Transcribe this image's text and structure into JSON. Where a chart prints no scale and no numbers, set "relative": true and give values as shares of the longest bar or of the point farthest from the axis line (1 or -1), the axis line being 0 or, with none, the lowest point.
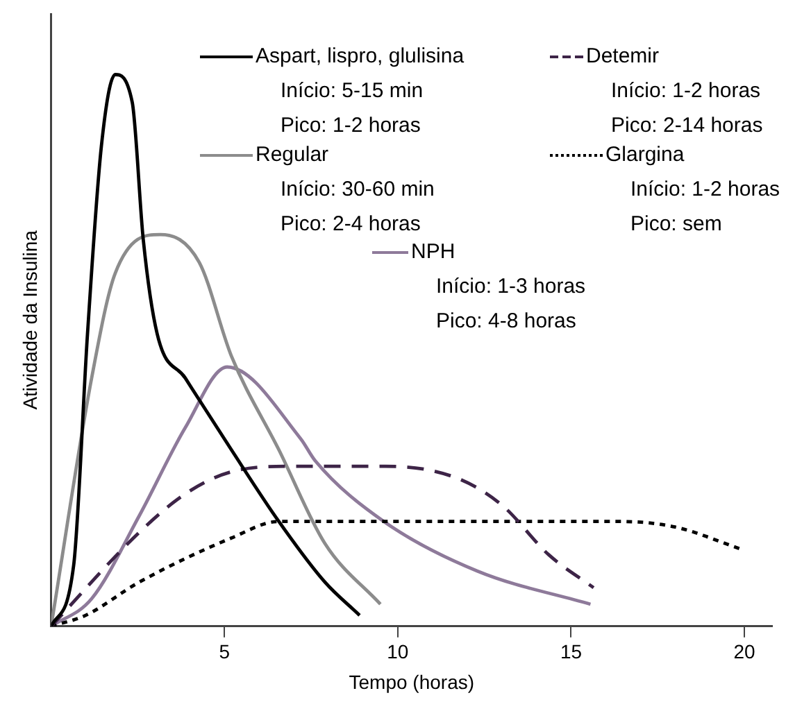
{
  "chart_data": {
    "type": "line",
    "relative": true,
    "xlabel": "Tempo (horas)",
    "ylabel": "Atividade da Insulina",
    "xlim": [
      0,
      20.8
    ],
    "xticks": [
      5,
      10,
      15,
      20
    ],
    "grid": false,
    "legend": "top right",
    "marker": "none",
    "series": [
      {
        "name": "Aspart, lispro, glulisina",
        "color": "#000000",
        "line_style": "solid",
        "x": [
          0,
          0.65,
          1.05,
          1.45,
          1.85,
          2.34,
          2.66,
          3.06,
          3.87,
          5.2,
          6.57,
          7.9,
          8.9
        ],
        "values": [
          0,
          0.11,
          0.53,
          0.87,
          1.0,
          0.95,
          0.7,
          0.53,
          0.45,
          0.32,
          0.19,
          0.08,
          0.02
        ]
      },
      {
        "name": "Detemir",
        "color": "#3d2447",
        "line_style": "dashed",
        "x": [
          0,
          2.54,
          3.87,
          5.2,
          6.98,
          9.64,
          11.65,
          13.0,
          14.35,
          15.65
        ],
        "values": [
          0,
          0.17,
          0.24,
          0.28,
          0.29,
          0.29,
          0.27,
          0.22,
          0.13,
          0.07
        ]
      },
      {
        "name": "Regular",
        "color": "#8c8c8c",
        "line_style": "solid",
        "x": [
          0,
          1.17,
          1.85,
          3.15,
          4.27,
          5.2,
          6.57,
          7.9,
          9.5
        ],
        "values": [
          0,
          0.45,
          0.64,
          0.71,
          0.66,
          0.49,
          0.32,
          0.15,
          0.04
        ]
      },
      {
        "name": "Glargina",
        "color": "#000000",
        "line_style": "dotted",
        "x": [
          0,
          1.0,
          2.54,
          5.2,
          6.57,
          9.64,
          13.0,
          16.4,
          18.0,
          19.9
        ],
        "values": [
          0,
          0.02,
          0.08,
          0.16,
          0.19,
          0.19,
          0.19,
          0.19,
          0.18,
          0.14
        ]
      },
      {
        "name": "NPH",
        "color": "#8e7a9a",
        "line_style": "solid",
        "x": [
          0,
          1.17,
          2.54,
          3.87,
          5.08,
          7.2,
          7.62,
          9.6,
          12.3,
          15.56
        ],
        "values": [
          0,
          0.05,
          0.2,
          0.36,
          0.47,
          0.34,
          0.3,
          0.19,
          0.1,
          0.04
        ]
      }
    ],
    "annotations": [
      "Início: 5-15 min",
      "Pico: 1-2 horas",
      "Início: 1-2 horas",
      "Pico: 2-14 horas",
      "Início: 30-60 min",
      "Pico: 2-4 horas",
      "Início: 1-2 horas",
      "Pico: sem",
      "Início: 1-3 horas",
      "Pico: 4-8 horas"
    ]
  }
}
